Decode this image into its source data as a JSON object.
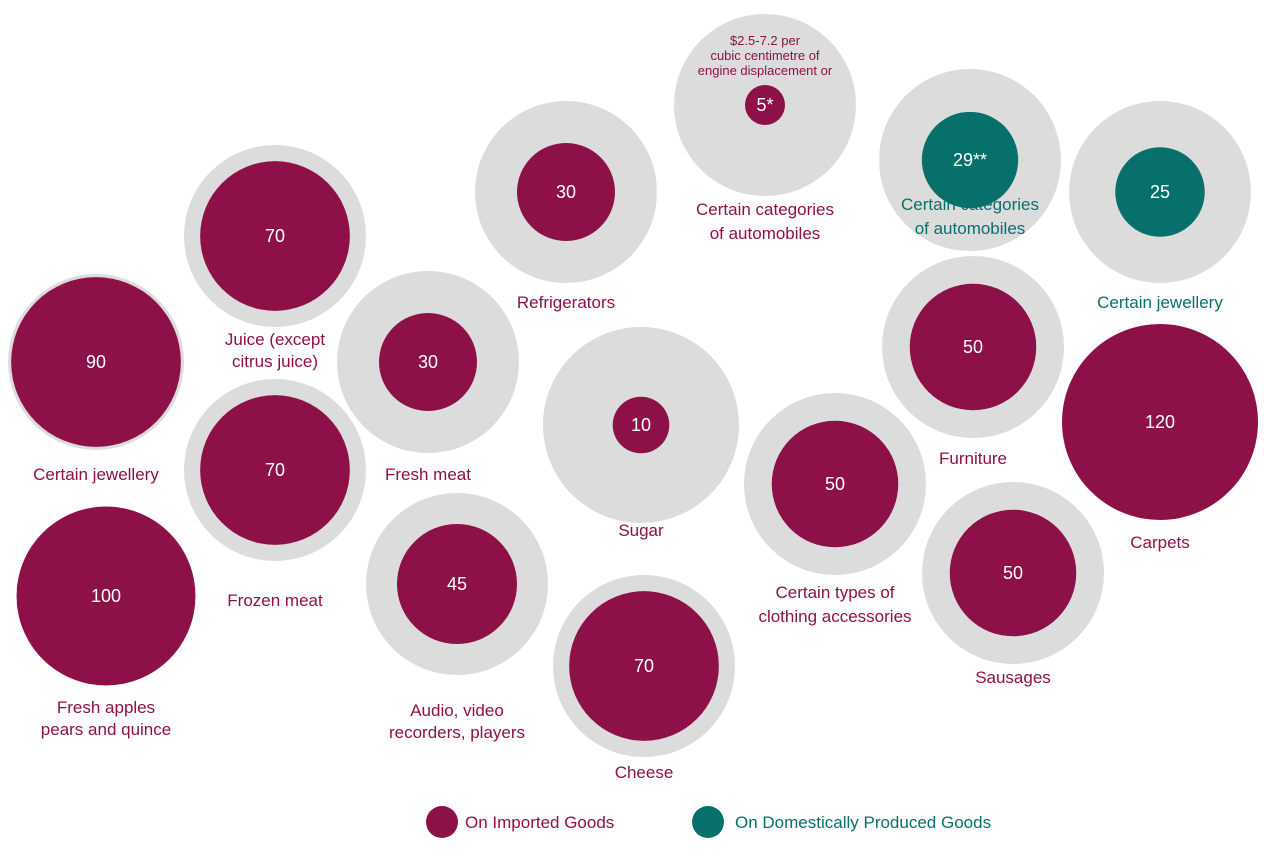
{
  "colors": {
    "imported": "#8e1049",
    "domestic": "#08706a",
    "ring": "#dcdcdc"
  },
  "legend": {
    "imported_label": "On Imported Goods",
    "domestic_label": "On Domestically Produced Goods"
  },
  "chart_data": {
    "type": "bubble",
    "scale_value": 120,
    "items": [
      {
        "label": [
          "Certain jewellery"
        ],
        "value": 90,
        "display": "90",
        "group": "imported"
      },
      {
        "label": [
          "Fresh apples",
          "pears and quince"
        ],
        "value": 100,
        "display": "100",
        "group": "imported"
      },
      {
        "label": [
          "Juice (except",
          "citrus juice)"
        ],
        "value": 70,
        "display": "70",
        "group": "imported"
      },
      {
        "label": [
          "Frozen meat"
        ],
        "value": 70,
        "display": "70",
        "group": "imported"
      },
      {
        "label": [
          "Fresh meat"
        ],
        "value": 30,
        "display": "30",
        "group": "imported"
      },
      {
        "label": [
          "Audio, video",
          "recorders, players"
        ],
        "value": 45,
        "display": "45",
        "group": "imported"
      },
      {
        "label": [
          "Refrigerators"
        ],
        "value": 30,
        "display": "30",
        "group": "imported"
      },
      {
        "label": [
          "Sugar"
        ],
        "value": 10,
        "display": "10",
        "group": "imported"
      },
      {
        "label": [
          "Cheese"
        ],
        "value": 70,
        "display": "70",
        "group": "imported"
      },
      {
        "label": [
          "Certain categories",
          "of automobiles"
        ],
        "value": 5,
        "display": "5*",
        "group": "imported",
        "note": [
          "$2.5-7.2 per",
          "cubic centimetre of",
          "engine displacement or"
        ]
      },
      {
        "label": [
          "Certain categories",
          "of automobiles"
        ],
        "value": 29,
        "display": "29**",
        "group": "domestic"
      },
      {
        "label": [
          "Certain jewellery"
        ],
        "value": 25,
        "display": "25",
        "group": "domestic"
      },
      {
        "label": [
          "Furniture"
        ],
        "value": 50,
        "display": "50",
        "group": "imported"
      },
      {
        "label": [
          "Certain types of",
          "clothing accessories"
        ],
        "value": 50,
        "display": "50",
        "group": "imported"
      },
      {
        "label": [
          "Sausages"
        ],
        "value": 50,
        "display": "50",
        "group": "imported"
      },
      {
        "label": [
          "Carpets"
        ],
        "value": 120,
        "display": "120",
        "group": "imported"
      }
    ]
  }
}
